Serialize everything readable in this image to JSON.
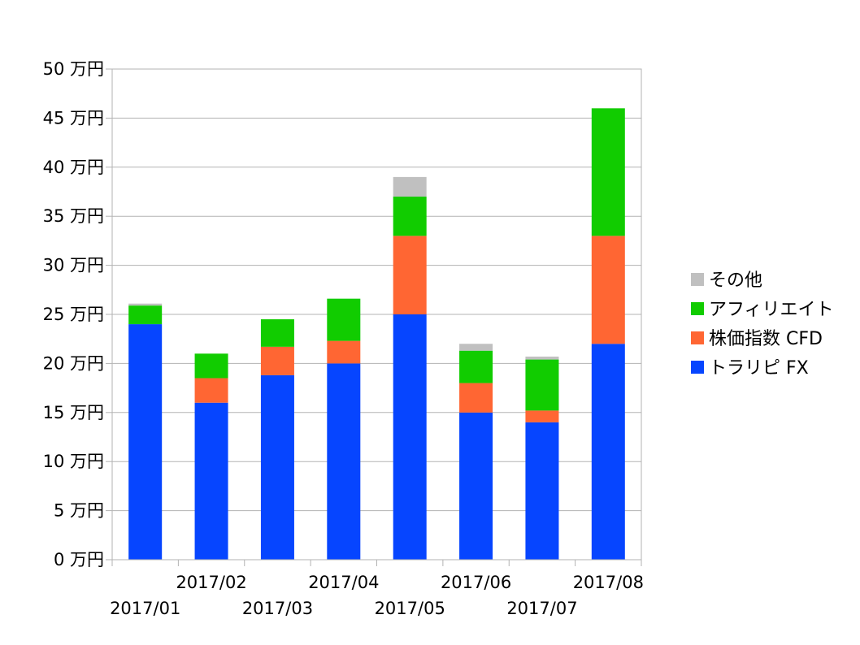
{
  "chart_data": {
    "type": "bar",
    "stacked": true,
    "categories": [
      "2017/01",
      "2017/02",
      "2017/03",
      "2017/04",
      "2017/05",
      "2017/06",
      "2017/07",
      "2017/08"
    ],
    "series": [
      {
        "name": "トラリピ FX",
        "color": "#0645ff",
        "values": [
          24,
          16,
          18.8,
          20,
          25,
          15,
          14,
          22
        ]
      },
      {
        "name": "株価指数 CFD",
        "color": "#ff6633",
        "values": [
          0,
          2.5,
          2.9,
          2.3,
          8,
          3,
          1.2,
          11
        ]
      },
      {
        "name": "アフィリエイト",
        "color": "#11cc00",
        "values": [
          1.9,
          2.5,
          2.8,
          4.3,
          4,
          3.3,
          5.2,
          13
        ]
      },
      {
        "name": "その他",
        "color": "#c0c0c0",
        "values": [
          0.2,
          0,
          0,
          0,
          2,
          0.7,
          0.3,
          0
        ]
      }
    ],
    "ylim": [
      0,
      50
    ],
    "yticks": [
      0,
      5,
      10,
      15,
      20,
      25,
      30,
      35,
      40,
      45,
      50
    ],
    "ytick_unit": "万円",
    "grid": true,
    "legend_position": "right"
  }
}
